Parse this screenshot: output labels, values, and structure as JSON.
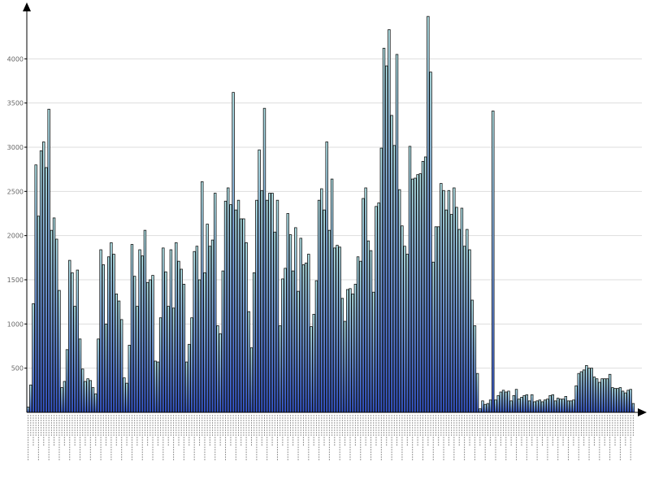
{
  "chart_data": {
    "type": "bar",
    "title": "",
    "xlabel": "",
    "ylabel": "",
    "ylim": [
      0,
      4500
    ],
    "grid": true,
    "legend": "none",
    "y_ticks": [
      500,
      1000,
      1500,
      2000,
      2500,
      3000,
      3500,
      4000
    ],
    "y_tick_labels": [
      "500",
      "1000",
      "1500",
      "2000",
      "2500",
      "3000",
      "3500",
      "4000"
    ],
    "x_tick_labels_legible": false,
    "colors": {
      "bar_top": "#b4e6ea",
      "bar_bottom": "#3355cc",
      "bar_stroke": "#111111",
      "grid": "#dddddd",
      "axis": "#000000"
    },
    "values": [
      60,
      310,
      1230,
      2800,
      2220,
      2960,
      3060,
      2770,
      3430,
      2060,
      2200,
      1960,
      1380,
      280,
      350,
      710,
      1720,
      1580,
      1200,
      1610,
      830,
      490,
      350,
      380,
      360,
      280,
      210,
      830,
      1840,
      1670,
      1000,
      1760,
      1920,
      1790,
      1340,
      1260,
      1050,
      390,
      330,
      760,
      1900,
      1540,
      1200,
      1840,
      1770,
      2060,
      1470,
      1500,
      1550,
      580,
      570,
      1070,
      1860,
      1590,
      1200,
      1840,
      1180,
      1920,
      1710,
      1620,
      1450,
      570,
      770,
      1070,
      1820,
      1880,
      1500,
      2610,
      1580,
      2130,
      1880,
      1950,
      2480,
      980,
      890,
      1600,
      2390,
      2540,
      2350,
      3620,
      2290,
      2400,
      2190,
      2190,
      1920,
      1140,
      730,
      1580,
      2400,
      2970,
      2510,
      3440,
      2400,
      2480,
      2480,
      2040,
      2400,
      980,
      1510,
      1630,
      2250,
      2010,
      1600,
      2090,
      1370,
      1970,
      1670,
      1690,
      1790,
      970,
      1110,
      1490,
      2400,
      2530,
      2290,
      3060,
      2060,
      2640,
      1860,
      1890,
      1870,
      1290,
      1030,
      1390,
      1400,
      1340,
      1450,
      1760,
      1710,
      2420,
      2540,
      1940,
      1830,
      1360,
      2330,
      2370,
      2990,
      4120,
      3920,
      4330,
      3360,
      3020,
      4050,
      2520,
      2110,
      1880,
      1790,
      3010,
      2640,
      2650,
      2690,
      2700,
      2840,
      2890,
      4480,
      3850,
      1700,
      2100,
      2100,
      2590,
      2510,
      2290,
      2510,
      2240,
      2540,
      2320,
      2070,
      2310,
      1880,
      2070,
      1840,
      1270,
      980,
      440,
      40,
      130,
      90,
      100,
      140,
      3410,
      140,
      190,
      230,
      250,
      230,
      240,
      130,
      190,
      260,
      150,
      170,
      190,
      200,
      130,
      200,
      120,
      130,
      140,
      120,
      140,
      150,
      190,
      200,
      130,
      160,
      150,
      150,
      180,
      130,
      130,
      140,
      300,
      440,
      460,
      480,
      530,
      500,
      500,
      400,
      380,
      340,
      380,
      380,
      380,
      430,
      280,
      270,
      270,
      280,
      240,
      220,
      250,
      260,
      100
    ]
  }
}
